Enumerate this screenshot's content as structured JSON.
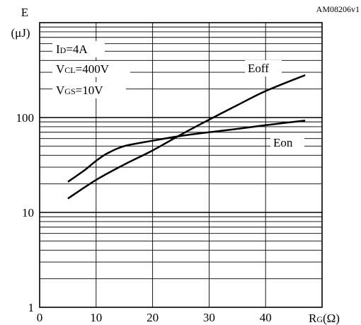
{
  "figure_id": "AM08206v1",
  "chart_data": {
    "type": "line",
    "ylabel": {
      "symbol": "E",
      "unit": "(μJ)"
    },
    "xlabel": {
      "main": "R",
      "sub": "G",
      "unit": "(Ω)"
    },
    "xlim": [
      0,
      50
    ],
    "ylim": [
      1,
      1000
    ],
    "yscale": "log",
    "x_ticks": [
      "0",
      "10",
      "20",
      "30",
      "40"
    ],
    "y_ticks": [
      "1",
      "10",
      "100"
    ],
    "grid": true,
    "conditions": [
      {
        "main": "I",
        "sub": "D",
        "rest": "=4A"
      },
      {
        "main": "V",
        "sub": "CL",
        "rest": "=400V"
      },
      {
        "main": "V",
        "sub": "GS",
        "rest": "=10V"
      }
    ],
    "series": [
      {
        "name": "Eoff",
        "x": [
          5,
          10,
          15,
          20,
          25,
          30,
          35,
          40,
          47
        ],
        "y": [
          14,
          22,
          32,
          45,
          66,
          95,
          135,
          190,
          280
        ]
      },
      {
        "name": "Eon",
        "x": [
          5,
          8,
          10,
          12,
          15,
          20,
          25,
          30,
          35,
          40,
          47
        ],
        "y": [
          21,
          28,
          35,
          42,
          50,
          57,
          64,
          70,
          76,
          83,
          93
        ]
      }
    ]
  }
}
